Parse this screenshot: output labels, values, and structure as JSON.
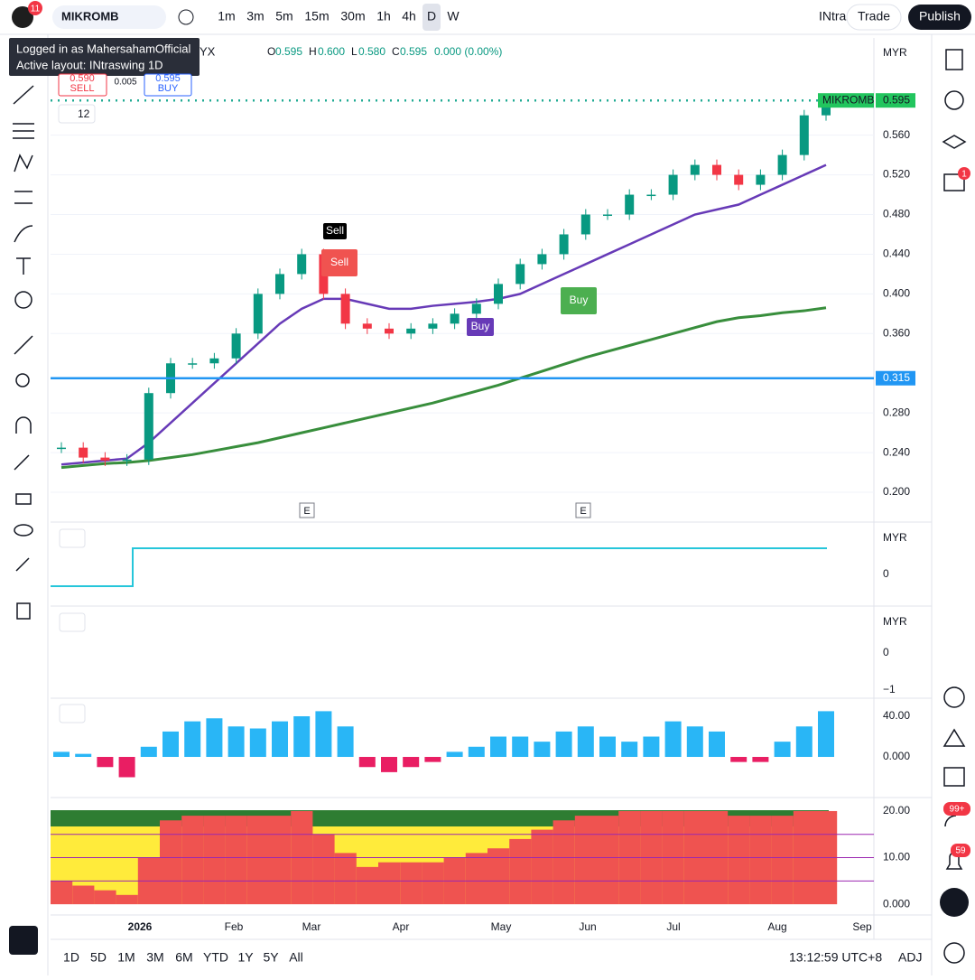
{
  "top_bar": {
    "symbol": "MIKROMB",
    "notifications": "11",
    "intervals": [
      "1m",
      "3m",
      "5m",
      "15m",
      "30m",
      "1h",
      "4h",
      "D",
      "W"
    ],
    "layout": "INtra",
    "trade": "Trade",
    "publish": "Publish"
  },
  "tooltip": {
    "line1": "Logged in as MahersahamOfficial",
    "line2": "Active layout: INtraswing 1D"
  },
  "legend": {
    "symbol_suffix": "YX",
    "o_label": "O",
    "o": "0.595",
    "h_label": "H",
    "h": "0.600",
    "l_label": "L",
    "l": "0.580",
    "c_label": "C",
    "c": "0.595",
    "change": "0.000 (0.00%)"
  },
  "trade_box": {
    "sell_price": "0.590",
    "sell": "SELL",
    "spread": "0.005",
    "buy_price": "0.595",
    "buy": "BUY"
  },
  "indicator_count": "12",
  "chart": {
    "currency": "MYR",
    "ylim": [
      0.17,
      0.658
    ],
    "price_ticks": [
      {
        "value": 0.56,
        "label": "0.560"
      },
      {
        "value": 0.52,
        "label": "0.520"
      },
      {
        "value": 0.48,
        "label": "0.480"
      },
      {
        "value": 0.44,
        "label": "0.440"
      },
      {
        "value": 0.4,
        "label": "0.400"
      },
      {
        "value": 0.36,
        "label": "0.360"
      },
      {
        "value": 0.28,
        "label": "0.280"
      },
      {
        "value": 0.24,
        "label": "0.240"
      },
      {
        "value": 0.2,
        "label": "0.200"
      }
    ],
    "symbol_tag": "MIKROMB",
    "last_price": {
      "value": 0.595,
      "label": "0.595"
    },
    "hline": {
      "value": 0.315,
      "label": "0.315"
    },
    "closes": [
      0.245,
      0.235,
      0.232,
      0.233,
      0.3,
      0.33,
      0.33,
      0.335,
      0.36,
      0.4,
      0.42,
      0.44,
      0.4,
      0.37,
      0.365,
      0.36,
      0.365,
      0.37,
      0.38,
      0.39,
      0.41,
      0.43,
      0.44,
      0.46,
      0.48,
      0.48,
      0.5,
      0.5,
      0.52,
      0.53,
      0.52,
      0.51,
      0.52,
      0.54,
      0.58,
      0.595
    ],
    "ma_mid": [
      0.228,
      0.23,
      0.232,
      0.234,
      0.25,
      0.27,
      0.29,
      0.31,
      0.33,
      0.35,
      0.37,
      0.385,
      0.395,
      0.395,
      0.39,
      0.385,
      0.385,
      0.388,
      0.39,
      0.392,
      0.395,
      0.4,
      0.41,
      0.42,
      0.43,
      0.44,
      0.45,
      0.46,
      0.47,
      0.48,
      0.485,
      0.49,
      0.5,
      0.51,
      0.52,
      0.53
    ],
    "ma_long": [
      0.225,
      0.227,
      0.229,
      0.23,
      0.232,
      0.235,
      0.238,
      0.242,
      0.246,
      0.25,
      0.255,
      0.26,
      0.265,
      0.27,
      0.275,
      0.28,
      0.285,
      0.29,
      0.296,
      0.302,
      0.308,
      0.315,
      0.322,
      0.329,
      0.336,
      0.342,
      0.348,
      0.354,
      0.36,
      0.366,
      0.372,
      0.376,
      0.378,
      0.381,
      0.383,
      0.386
    ],
    "signals": [
      "Sell",
      "Sell",
      "Buy",
      "Buy"
    ],
    "earnings": [
      "E",
      "E"
    ]
  },
  "pane2": {
    "currency": "MYR",
    "tick": "0"
  },
  "pane3": {
    "currency": "MYR",
    "ticks": [
      "0",
      "−1"
    ]
  },
  "pane4": {
    "ylim": [
      -40,
      57.8
    ],
    "ticks": [
      {
        "value": 40,
        "label": "40.00"
      },
      {
        "value": 0,
        "label": "0.000"
      }
    ],
    "values": [
      5,
      3,
      -10,
      -20,
      10,
      25,
      35,
      38,
      30,
      28,
      35,
      40,
      45,
      30,
      -10,
      -15,
      -10,
      -5,
      5,
      10,
      20,
      20,
      15,
      25,
      30,
      20,
      15,
      20,
      35,
      30,
      25,
      -5,
      -5,
      15,
      30,
      45
    ]
  },
  "pane5": {
    "ylim": [
      -2.3,
      22.9
    ],
    "ticks": [
      {
        "value": 20,
        "label": "20.00"
      },
      {
        "value": 10,
        "label": "10.00"
      },
      {
        "value": 0,
        "label": "0.000"
      }
    ],
    "values": [
      5,
      4,
      3,
      2,
      10,
      18,
      19,
      19,
      19,
      19,
      19,
      20,
      15,
      11,
      8,
      9,
      9,
      9,
      10,
      11,
      12,
      14,
      16,
      18,
      19,
      19,
      20,
      20,
      20,
      20,
      20,
      19,
      19,
      19,
      20,
      20
    ]
  },
  "time_axis": [
    "2026",
    "Feb",
    "Mar",
    "Apr",
    "May",
    "Jun",
    "Jul",
    "Aug",
    "Sep"
  ],
  "bottom_bar": {
    "ranges": [
      "1D",
      "5D",
      "1M",
      "3M",
      "6M",
      "YTD",
      "1Y",
      "5Y",
      "All"
    ],
    "clock": "13:12:59 UTC+8",
    "adj": "ADJ"
  },
  "right_badges": {
    "chat": "1",
    "feeds": "99+",
    "alerts": "59"
  }
}
